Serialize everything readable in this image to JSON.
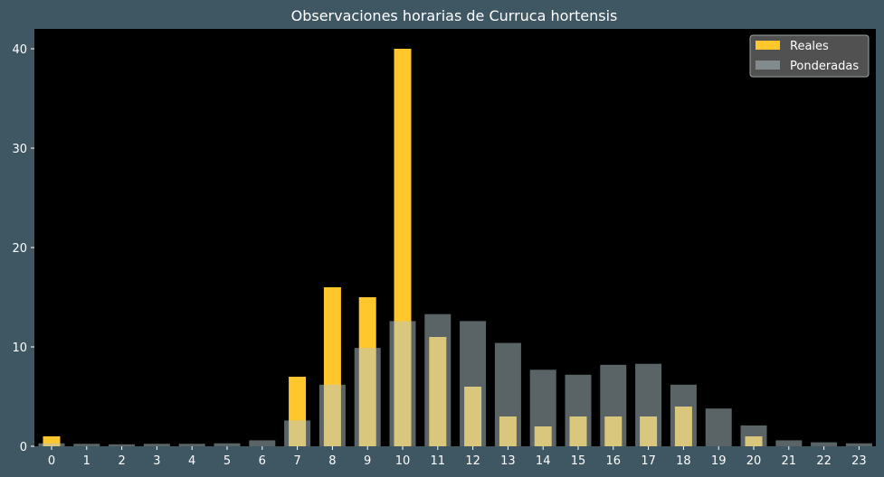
{
  "chart_data": {
    "type": "bar",
    "title": "Observaciones horarias de Curruca hortensis",
    "xlabel": "",
    "ylabel": "",
    "categories": [
      "0",
      "1",
      "2",
      "3",
      "4",
      "5",
      "6",
      "7",
      "8",
      "9",
      "10",
      "11",
      "12",
      "13",
      "14",
      "15",
      "16",
      "17",
      "18",
      "19",
      "20",
      "21",
      "22",
      "23"
    ],
    "series": [
      {
        "name": "Reales",
        "color": "#ffc72c",
        "values": [
          1,
          0,
          0,
          0,
          0,
          0,
          0,
          7,
          16,
          15,
          40,
          11,
          6,
          3,
          2,
          3,
          3,
          3,
          4,
          0,
          1,
          0,
          0,
          0
        ]
      },
      {
        "name": "Ponderadas",
        "color": "#b4c8cd",
        "values": [
          0.3,
          0.25,
          0.2,
          0.25,
          0.25,
          0.3,
          0.6,
          2.6,
          6.2,
          9.9,
          12.6,
          13.3,
          12.6,
          10.4,
          7.7,
          7.2,
          8.2,
          8.3,
          6.2,
          3.8,
          2.1,
          0.6,
          0.4,
          0.3
        ]
      }
    ],
    "yticks": [
      0,
      10,
      20,
      30,
      40
    ],
    "ylim": [
      0,
      42
    ],
    "grid": false,
    "legend_position": "top-right",
    "colors": {
      "page_background": "#3f5663",
      "plot_background": "#000000",
      "text": "#ffffff",
      "legend_background": "#555555"
    }
  }
}
